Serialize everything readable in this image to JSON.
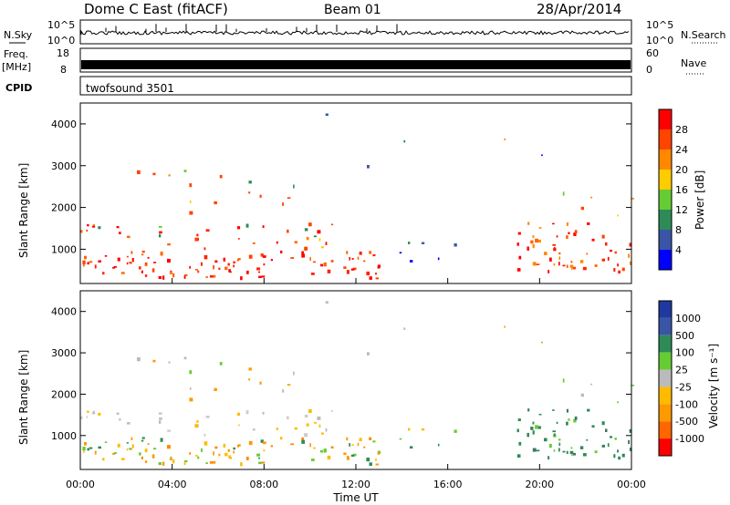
{
  "header": {
    "station": "Dome C East (fitACF)",
    "beam": "Beam 01",
    "date": "28/Apr/2014"
  },
  "left_labels": {
    "nsky": "N.Sky",
    "freq": "Freq.",
    "freq_unit": "[MHz]",
    "cpid": "CPID"
  },
  "right_labels": {
    "nsearch": "N.Search",
    "nave": "Nave"
  },
  "nsky_ticks": [
    "10^5",
    "10^0"
  ],
  "nsearch_ticks": [
    "10^5",
    "10^0"
  ],
  "freq_ticks": [
    "18",
    "8"
  ],
  "nave_ticks": [
    "60",
    "0"
  ],
  "cpid_text": "twofsound 3501",
  "colors": {
    "power_scale": [
      "#0000ff",
      "#3a55a6",
      "#2e8b57",
      "#66cc33",
      "#ffcc00",
      "#ff8800",
      "#ff4400",
      "#ff0000"
    ],
    "velocity_scale": [
      "#ff0000",
      "#ff6600",
      "#ff9900",
      "#ffbb00",
      "#bbbbbb",
      "#66cc33",
      "#2e8b57",
      "#3a55a6",
      "#1e3aa0"
    ]
  },
  "chart_data": [
    {
      "type": "heatmap",
      "name": "power",
      "ylabel": "Slant Range [km]",
      "ylim": [
        180,
        4500
      ],
      "y_ticks": [
        "4000",
        "3000",
        "2000",
        "1000"
      ],
      "xlim_hours": [
        0,
        24
      ],
      "colorbar_label": "Power [dB]",
      "colorbar_ticks": [
        "28",
        "24",
        "20",
        "16",
        "12",
        "8",
        "4"
      ],
      "colorbar_range": [
        0,
        32
      ]
    },
    {
      "type": "heatmap",
      "name": "velocity",
      "ylabel": "Slant Range [km]",
      "ylim": [
        180,
        4500
      ],
      "y_ticks": [
        "4000",
        "3000",
        "2000",
        "1000"
      ],
      "xlim_hours": [
        0,
        24
      ],
      "colorbar_label": "Velocity [m s⁻¹]",
      "colorbar_ticks": [
        "1000",
        "500",
        "100",
        "25",
        "-25",
        "-100",
        "-500",
        "-1000"
      ]
    }
  ],
  "x_ticks": [
    "00:00",
    "04:00",
    "08:00",
    "12:00",
    "16:00",
    "20:00",
    "00:00"
  ],
  "xlabel": "Time UT"
}
